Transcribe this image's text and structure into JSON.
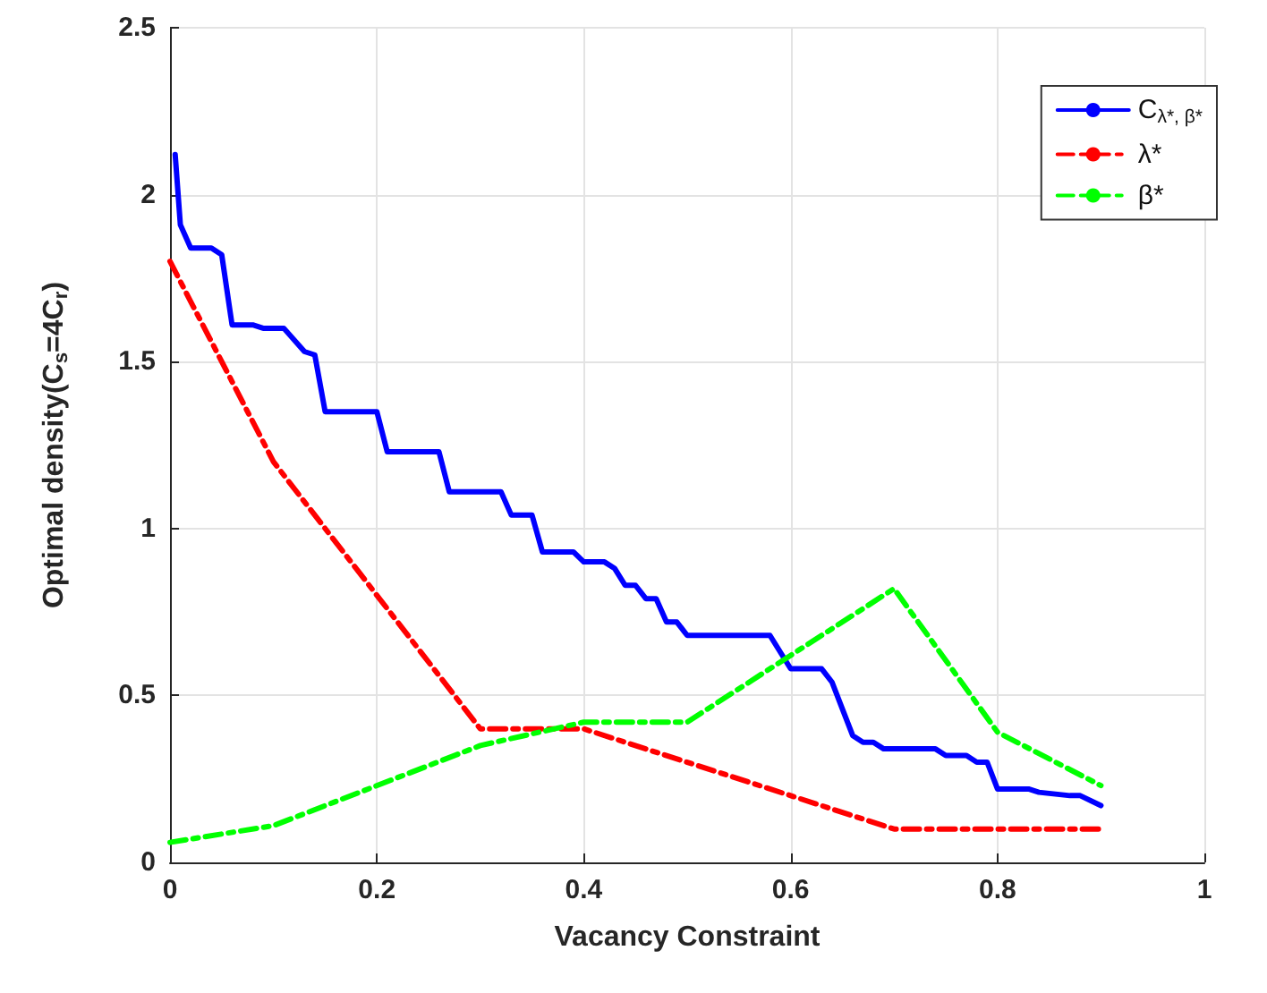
{
  "chart_data": {
    "type": "line",
    "xlabel": "Vacancy Constraint",
    "ylabel": "Optimal density(C$_{s}$=4C$_{r}$)",
    "xlim": [
      0,
      1
    ],
    "xticks": [
      0,
      0.2,
      0.4,
      0.6,
      0.8,
      1
    ],
    "ylim": [
      0,
      2.5
    ],
    "yticks": [
      0,
      0.5,
      1,
      1.5,
      2,
      2.5
    ],
    "grid": true,
    "legend": "top right",
    "marker": "none",
    "series": [
      {
        "name": "C$_{λ*, β*}$",
        "color": "#0000ff",
        "line_style": "solid",
        "x": [
          0.005,
          0.01,
          0.02,
          0.04,
          0.05,
          0.06,
          0.08,
          0.09,
          0.11,
          0.13,
          0.14,
          0.15,
          0.2,
          0.21,
          0.26,
          0.27,
          0.32,
          0.33,
          0.35,
          0.36,
          0.39,
          0.4,
          0.42,
          0.43,
          0.44,
          0.45,
          0.46,
          0.47,
          0.48,
          0.49,
          0.5,
          0.58,
          0.6,
          0.63,
          0.64,
          0.65,
          0.66,
          0.67,
          0.68,
          0.69,
          0.74,
          0.75,
          0.77,
          0.78,
          0.79,
          0.8,
          0.83,
          0.84,
          0.87,
          0.88,
          0.9
        ],
        "values": [
          2.12,
          1.91,
          1.84,
          1.84,
          1.82,
          1.61,
          1.61,
          1.6,
          1.6,
          1.53,
          1.52,
          1.35,
          1.35,
          1.23,
          1.23,
          1.11,
          1.11,
          1.04,
          1.04,
          0.93,
          0.93,
          0.9,
          0.9,
          0.88,
          0.83,
          0.83,
          0.79,
          0.79,
          0.72,
          0.72,
          0.68,
          0.68,
          0.58,
          0.58,
          0.54,
          0.46,
          0.38,
          0.36,
          0.36,
          0.34,
          0.34,
          0.32,
          0.32,
          0.3,
          0.3,
          0.22,
          0.22,
          0.21,
          0.2,
          0.2,
          0.17
        ]
      },
      {
        "name": "λ*",
        "color": "#ff0000",
        "line_style": "dashed",
        "x": [
          0,
          0.1,
          0.3,
          0.4,
          0.7,
          0.9
        ],
        "values": [
          1.8,
          1.2,
          0.4,
          0.4,
          0.1,
          0.1
        ]
      },
      {
        "name": "β*",
        "color": "#00ff00",
        "line_style": "dashed",
        "x": [
          0,
          0.1,
          0.3,
          0.4,
          0.5,
          0.7,
          0.8,
          0.9
        ],
        "values": [
          0.06,
          0.11,
          0.35,
          0.42,
          0.42,
          0.82,
          0.39,
          0.23
        ]
      }
    ]
  }
}
